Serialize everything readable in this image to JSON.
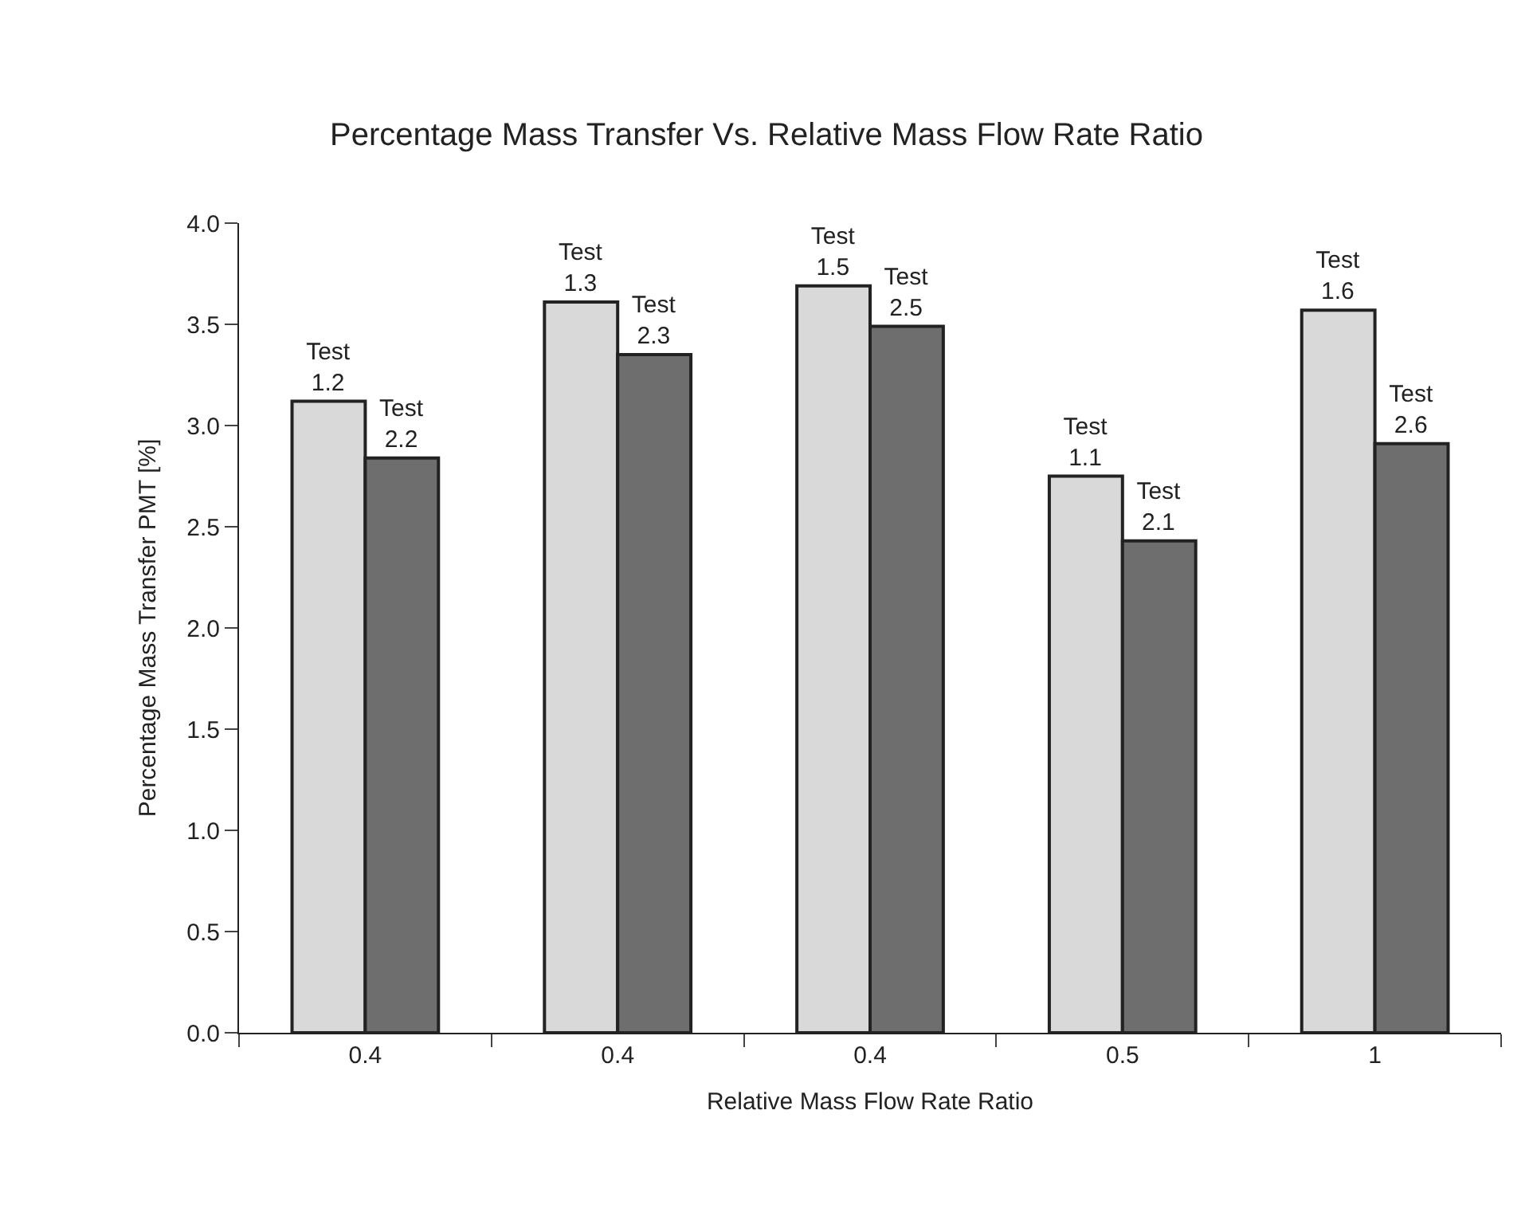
{
  "chart_data": {
    "type": "bar",
    "title": "Percentage Mass Transfer Vs. Relative Mass Flow Rate Ratio",
    "xlabel": "Relative Mass Flow Rate Ratio",
    "ylabel": "Percentage Mass Transfer PMT [%]",
    "categories": [
      "0.4",
      "0.4",
      "0.4",
      "0.5",
      "1"
    ],
    "series": [
      {
        "color": "#d9d9d9",
        "values": [
          3.12,
          3.61,
          3.69,
          2.75,
          3.57
        ],
        "value_labels": [
          "Test\n1.2",
          "Test\n1.3",
          "Test\n1.5",
          "Test\n1.1",
          "Test\n1.6"
        ]
      },
      {
        "color": "#6e6e6e",
        "values": [
          2.84,
          3.35,
          3.49,
          2.43,
          2.91
        ],
        "value_labels": [
          "Test\n2.2",
          "Test\n2.3",
          "Test\n2.5",
          "Test\n2.1",
          "Test\n2.6"
        ]
      }
    ],
    "ylim": [
      0,
      4
    ],
    "yticks": [
      {
        "value": 0,
        "label": "0.0"
      },
      {
        "value": 0.5,
        "label": "0.5"
      },
      {
        "value": 1,
        "label": "1.0"
      },
      {
        "value": 1.5,
        "label": "1.5"
      },
      {
        "value": 2,
        "label": "2.0"
      },
      {
        "value": 2.5,
        "label": "2.5"
      },
      {
        "value": 3,
        "label": "3.0"
      },
      {
        "value": 3.5,
        "label": "3.5"
      },
      {
        "value": 4,
        "label": "4.0"
      }
    ],
    "legend": false
  }
}
